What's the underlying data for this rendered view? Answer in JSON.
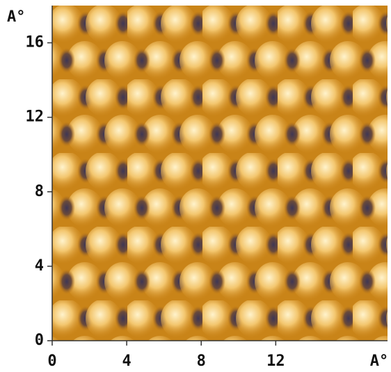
{
  "chart_data": {
    "type": "image",
    "x_label": "A°",
    "y_label": "A°",
    "xlim": [
      0,
      18
    ],
    "ylim": [
      0,
      18
    ],
    "xticks": [
      0,
      4,
      8,
      12
    ],
    "yticks": [
      0,
      4,
      8,
      12,
      16
    ]
  }
}
